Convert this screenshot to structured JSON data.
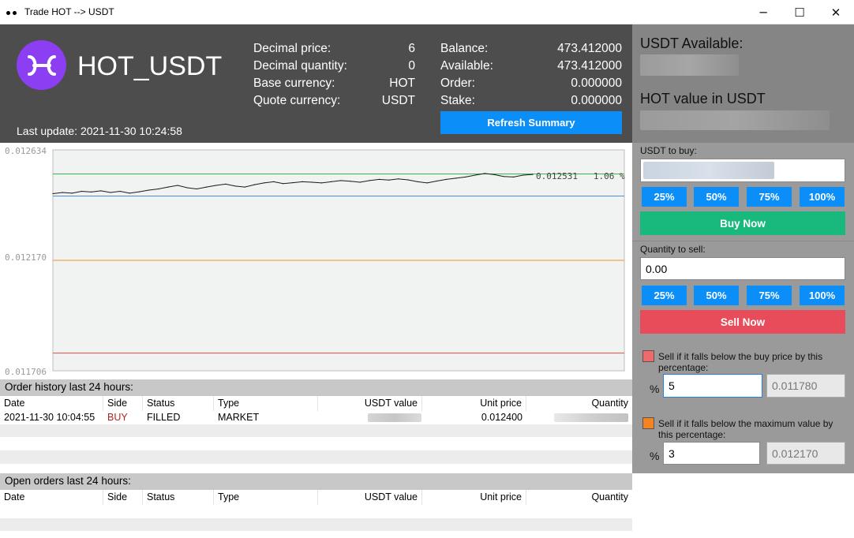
{
  "window": {
    "title": "Trade HOT --> USDT",
    "minimize_glyph": "─",
    "maximize_glyph": "☐",
    "close_glyph": "✕"
  },
  "header": {
    "pair": "HOT_USDT",
    "last_update": "Last update: 2021-11-30 10:24:58",
    "info": [
      {
        "label": "Decimal price:",
        "value": "6"
      },
      {
        "label": "Decimal quantity:",
        "value": "0"
      },
      {
        "label": "Base currency:",
        "value": "HOT"
      },
      {
        "label": "Quote currency:",
        "value": "USDT"
      }
    ],
    "balance": [
      {
        "label": "Balance:",
        "value": "473.412000"
      },
      {
        "label": "Available:",
        "value": "473.412000"
      },
      {
        "label": "Order:",
        "value": "0.000000"
      },
      {
        "label": "Stake:",
        "value": "0.000000"
      }
    ],
    "refresh_label": "Refresh Summary",
    "logo_color": "#8c3ff2"
  },
  "chart_data": {
    "type": "line",
    "y_ticks": [
      "0.012634",
      "0.012170",
      "0.011706"
    ],
    "ylim": [
      0.011706,
      0.012634
    ],
    "current_label": "0.012531   1.06 %",
    "hlines": [
      {
        "value": 0.012533,
        "color": "#3ab54a"
      },
      {
        "value": 0.01244,
        "color": "#4a90d9"
      },
      {
        "value": 0.01217,
        "color": "#f0932b"
      },
      {
        "value": 0.01178,
        "color": "#e74c3c"
      }
    ],
    "series": [
      {
        "values": [
          0.01245,
          0.012455,
          0.012452,
          0.01246,
          0.012457,
          0.012462,
          0.012455,
          0.01246,
          0.012452,
          0.012458,
          0.012465,
          0.01247,
          0.012478,
          0.012485,
          0.012475,
          0.01247,
          0.012478,
          0.012485,
          0.01249,
          0.012482,
          0.012478,
          0.012488,
          0.012495,
          0.0125,
          0.012492,
          0.012496,
          0.0125,
          0.012498,
          0.012495,
          0.0125,
          0.012505,
          0.012502,
          0.012498,
          0.012505,
          0.01251,
          0.012507,
          0.012512,
          0.012508,
          0.0125,
          0.012495,
          0.012503,
          0.01251,
          0.012515,
          0.01252,
          0.012528,
          0.012535,
          0.01253,
          0.012522,
          0.01252,
          0.012528,
          0.012531
        ]
      }
    ],
    "line_color": "#1a1a1a",
    "grid": false
  },
  "order_history": {
    "title": "Order history last 24 hours:",
    "columns": [
      "Date",
      "Side",
      "Status",
      "Type",
      "USDT value",
      "Unit price",
      "Quantity"
    ],
    "rows": [
      {
        "date": "2021-11-30 10:04:55",
        "side": "BUY",
        "status": "FILLED",
        "type": "MARKET",
        "unit_price": "0.012400"
      }
    ],
    "buy_color": "#b22222"
  },
  "open_orders": {
    "title": "Open orders last 24 hours:",
    "columns": [
      "Date",
      "Side",
      "Status",
      "Type",
      "USDT value",
      "Unit price",
      "Quantity"
    ]
  },
  "right_panel": {
    "usdt_available_label": "USDT Available:",
    "hot_value_label": "HOT value in USDT",
    "buy_label": "USDT to buy:",
    "percent_buttons": [
      "25%",
      "50%",
      "75%",
      "100%"
    ],
    "buy_button": "Buy Now",
    "sell_label": "Quantity to sell:",
    "sell_value": "0.00",
    "sell_button": "Sell Now",
    "stop_buy_text": "Sell if it falls below the buy price by this percentage:",
    "stop_buy_percent": "5",
    "stop_buy_price": "0.011780",
    "stop_max_text": "Sell if it falls below the maximum value by this percentage:",
    "stop_max_percent": "3",
    "stop_max_price": "0.012170",
    "percent_symbol": "%",
    "colors": {
      "buy": "#19b97e",
      "sell": "#e84c5a",
      "blue": "#0b8ef8",
      "chk_red": "#ef6a6a",
      "chk_orange": "#f5831f"
    }
  }
}
